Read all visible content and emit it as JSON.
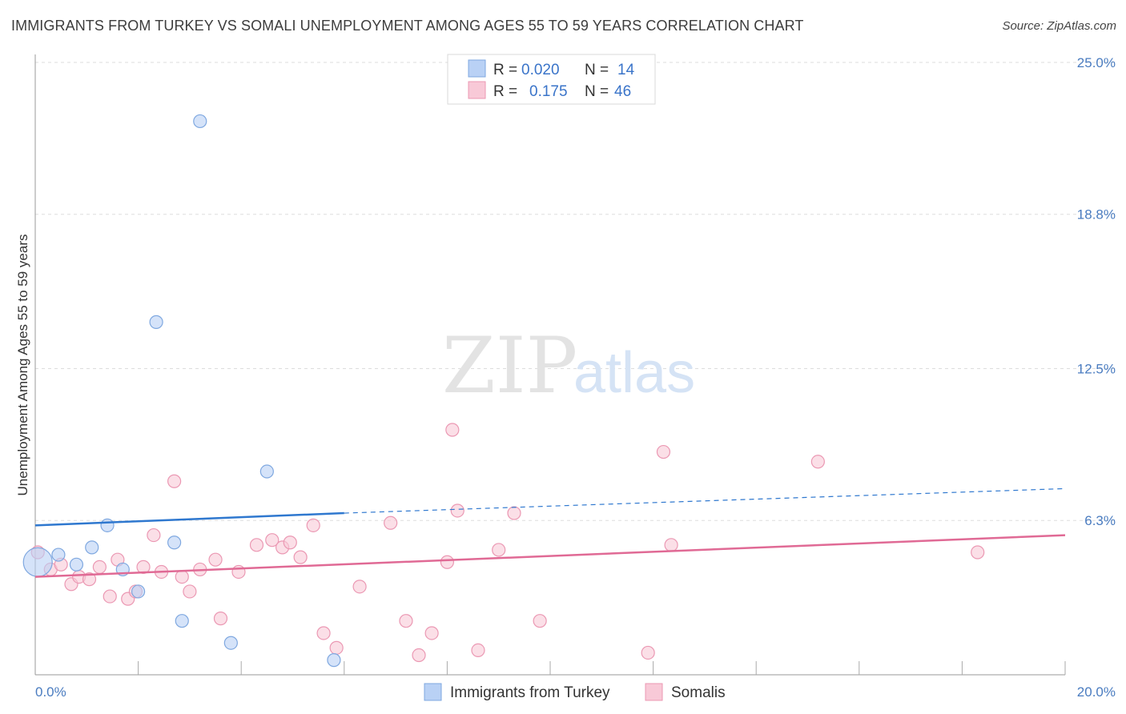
{
  "title": "IMMIGRANTS FROM TURKEY VS SOMALI UNEMPLOYMENT AMONG AGES 55 TO 59 YEARS CORRELATION CHART",
  "source": "Source: ZipAtlas.com",
  "watermark": {
    "zip": "ZIP",
    "atlas": "atlas"
  },
  "colors": {
    "turkey_fill": "#b9d1f5",
    "turkey_stroke": "#7fa8e0",
    "turkey_line": "#2f78cf",
    "somali_fill": "#f8c9d7",
    "somali_stroke": "#eb98b3",
    "somali_line": "#e06a95",
    "axis_text": "#4a7cc0",
    "grid": "#dddddd"
  },
  "legend": {
    "rows": [
      {
        "r_label": "R =",
        "r_value": "0.020",
        "n_label": "N =",
        "n_value": "14"
      },
      {
        "r_label": "R =",
        "r_value": "0.175",
        "n_label": "N =",
        "n_value": "46"
      }
    ]
  },
  "chart_data": {
    "type": "scatter",
    "title": "IMMIGRANTS FROM TURKEY VS SOMALI UNEMPLOYMENT AMONG AGES 55 TO 59 YEARS CORRELATION CHART",
    "xlabel": "",
    "ylabel": "Unemployment Among Ages 55 to 59 years",
    "xlim": [
      0,
      20
    ],
    "ylim": [
      0,
      25
    ],
    "x_tick_labels": [
      "0.0%",
      "20.0%"
    ],
    "y_ticks": [
      6.3,
      12.5,
      18.8,
      25.0
    ],
    "y_tick_labels": [
      "6.3%",
      "12.5%",
      "18.8%",
      "25.0%"
    ],
    "grid": true,
    "legend_position": "top-center",
    "series": [
      {
        "name": "Immigrants from Turkey",
        "R": 0.02,
        "N": 14,
        "trend": {
          "x": [
            0,
            6,
            20
          ],
          "y": [
            6.1,
            6.6,
            7.6
          ],
          "solid_until": 6
        },
        "points": [
          {
            "x": 0.05,
            "y": 4.6,
            "big": true
          },
          {
            "x": 0.45,
            "y": 4.9
          },
          {
            "x": 0.8,
            "y": 4.5
          },
          {
            "x": 1.1,
            "y": 5.2
          },
          {
            "x": 1.4,
            "y": 6.1
          },
          {
            "x": 1.7,
            "y": 4.3
          },
          {
            "x": 2.0,
            "y": 3.4
          },
          {
            "x": 2.35,
            "y": 14.4
          },
          {
            "x": 2.7,
            "y": 5.4
          },
          {
            "x": 2.85,
            "y": 2.2
          },
          {
            "x": 3.2,
            "y": 22.6
          },
          {
            "x": 3.8,
            "y": 1.3
          },
          {
            "x": 4.5,
            "y": 8.3
          },
          {
            "x": 5.8,
            "y": 0.6
          }
        ]
      },
      {
        "name": "Somalis",
        "R": 0.175,
        "N": 46,
        "trend": {
          "x": [
            0,
            20
          ],
          "y": [
            4.0,
            5.7
          ]
        },
        "points": [
          {
            "x": 0.05,
            "y": 5.0
          },
          {
            "x": 0.3,
            "y": 4.3
          },
          {
            "x": 0.5,
            "y": 4.5
          },
          {
            "x": 0.7,
            "y": 3.7
          },
          {
            "x": 0.85,
            "y": 4.0
          },
          {
            "x": 1.05,
            "y": 3.9
          },
          {
            "x": 1.25,
            "y": 4.4
          },
          {
            "x": 1.45,
            "y": 3.2
          },
          {
            "x": 1.6,
            "y": 4.7
          },
          {
            "x": 1.8,
            "y": 3.1
          },
          {
            "x": 1.95,
            "y": 3.4
          },
          {
            "x": 2.1,
            "y": 4.4
          },
          {
            "x": 2.3,
            "y": 5.7
          },
          {
            "x": 2.45,
            "y": 4.2
          },
          {
            "x": 2.7,
            "y": 7.9
          },
          {
            "x": 2.85,
            "y": 4.0
          },
          {
            "x": 3.0,
            "y": 3.4
          },
          {
            "x": 3.2,
            "y": 4.3
          },
          {
            "x": 3.5,
            "y": 4.7
          },
          {
            "x": 3.6,
            "y": 2.3
          },
          {
            "x": 3.95,
            "y": 4.2
          },
          {
            "x": 4.3,
            "y": 5.3
          },
          {
            "x": 4.6,
            "y": 5.5
          },
          {
            "x": 4.8,
            "y": 5.2
          },
          {
            "x": 4.95,
            "y": 5.4
          },
          {
            "x": 5.15,
            "y": 4.8
          },
          {
            "x": 5.4,
            "y": 6.1
          },
          {
            "x": 5.6,
            "y": 1.7
          },
          {
            "x": 5.85,
            "y": 1.1
          },
          {
            "x": 6.3,
            "y": 3.6
          },
          {
            "x": 6.9,
            "y": 6.2
          },
          {
            "x": 7.2,
            "y": 2.2
          },
          {
            "x": 7.45,
            "y": 0.8
          },
          {
            "x": 7.7,
            "y": 1.7
          },
          {
            "x": 8.0,
            "y": 4.6
          },
          {
            "x": 8.1,
            "y": 10.0
          },
          {
            "x": 8.2,
            "y": 6.7
          },
          {
            "x": 8.6,
            "y": 1.0
          },
          {
            "x": 9.0,
            "y": 5.1
          },
          {
            "x": 9.3,
            "y": 6.6
          },
          {
            "x": 9.8,
            "y": 2.2
          },
          {
            "x": 11.9,
            "y": 0.9
          },
          {
            "x": 12.2,
            "y": 9.1
          },
          {
            "x": 12.35,
            "y": 5.3
          },
          {
            "x": 15.2,
            "y": 8.7
          },
          {
            "x": 18.3,
            "y": 5.0
          }
        ]
      }
    ]
  }
}
